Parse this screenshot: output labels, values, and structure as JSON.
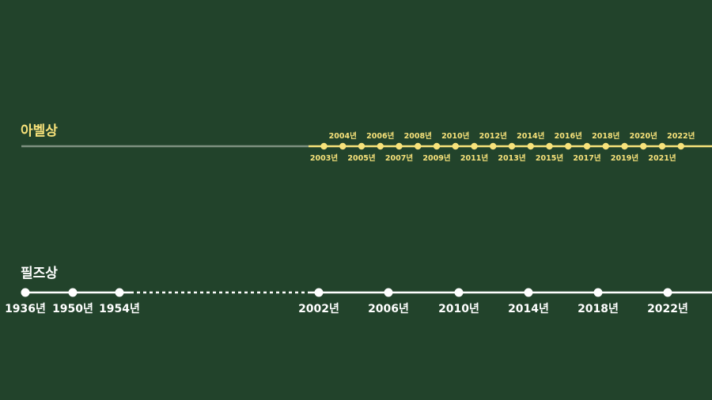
{
  "colors": {
    "background": "#22432b",
    "abel_accent": "#f7e27a",
    "abel_faded_line": "#7e9180",
    "fields_line": "#ffffff",
    "fields_text": "#ffffff"
  },
  "abel": {
    "title": "아벨상",
    "years_top": [
      "2004년",
      "2006년",
      "2008년",
      "2010년",
      "2012년",
      "2014년",
      "2016년",
      "2018년",
      "2020년",
      "2022년"
    ],
    "years_bottom": [
      "2003년",
      "2005년",
      "2007년",
      "2009년",
      "2011년",
      "2013년",
      "2015년",
      "2017년",
      "2019년",
      "2021년"
    ]
  },
  "fields": {
    "title": "필즈상",
    "years": [
      "1936년",
      "1950년",
      "1954년",
      "2002년",
      "2006년",
      "2010년",
      "2014년",
      "2018년",
      "2022년"
    ]
  }
}
